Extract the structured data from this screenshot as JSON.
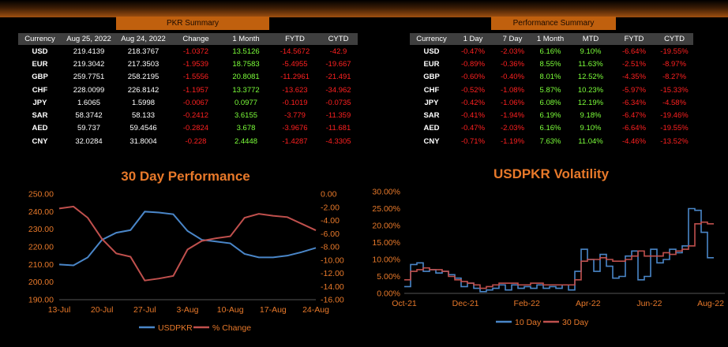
{
  "pkr_summary": {
    "title": "PKR Summary",
    "columns": [
      "Currency",
      "Aug 25, 2022",
      "Aug 24, 2022",
      "Change",
      "1 Month",
      "FYTD",
      "CYTD"
    ],
    "rows": [
      {
        "currency": "USD",
        "cells": [
          "219.4139",
          "218.3767",
          "-1.0372",
          "13.5126",
          "-14.5672",
          "-42.9"
        ]
      },
      {
        "currency": "EUR",
        "cells": [
          "219.3042",
          "217.3503",
          "-1.9539",
          "18.7583",
          "-5.4955",
          "-19.667"
        ]
      },
      {
        "currency": "GBP",
        "cells": [
          "259.7751",
          "258.2195",
          "-1.5556",
          "20.8081",
          "-11.2961",
          "-21.491"
        ]
      },
      {
        "currency": "CHF",
        "cells": [
          "228.0099",
          "226.8142",
          "-1.1957",
          "13.3772",
          "-13.623",
          "-34.962"
        ]
      },
      {
        "currency": "JPY",
        "cells": [
          "1.6065",
          "1.5998",
          "-0.0067",
          "0.0977",
          "-0.1019",
          "-0.0735"
        ]
      },
      {
        "currency": "SAR",
        "cells": [
          "58.3742",
          "58.133",
          "-0.2412",
          "3.6155",
          "-3.779",
          "-11.359"
        ]
      },
      {
        "currency": "AED",
        "cells": [
          "59.737",
          "59.4546",
          "-0.2824",
          "3.678",
          "-3.9676",
          "-11.681"
        ]
      },
      {
        "currency": "CNY",
        "cells": [
          "32.0284",
          "31.8004",
          "-0.228",
          "2.4448",
          "-1.4287",
          "-4.3305"
        ]
      }
    ]
  },
  "performance_summary": {
    "title": "Performance Summary",
    "columns": [
      "Currency",
      "1 Day",
      "7 Day",
      "1 Month",
      "MTD",
      "FYTD",
      "CYTD"
    ],
    "rows": [
      {
        "currency": "USD",
        "cells": [
          "-0.47%",
          "-2.03%",
          "6.16%",
          "9.10%",
          "-6.64%",
          "-19.55%"
        ]
      },
      {
        "currency": "EUR",
        "cells": [
          "-0.89%",
          "-0.36%",
          "8.55%",
          "11.63%",
          "-2.51%",
          "-8.97%"
        ]
      },
      {
        "currency": "GBP",
        "cells": [
          "-0.60%",
          "-0.40%",
          "8.01%",
          "12.52%",
          "-4.35%",
          "-8.27%"
        ]
      },
      {
        "currency": "CHF",
        "cells": [
          "-0.52%",
          "-1.08%",
          "5.87%",
          "10.23%",
          "-5.97%",
          "-15.33%"
        ]
      },
      {
        "currency": "JPY",
        "cells": [
          "-0.42%",
          "-1.06%",
          "6.08%",
          "12.19%",
          "-6.34%",
          "-4.58%"
        ]
      },
      {
        "currency": "SAR",
        "cells": [
          "-0.41%",
          "-1.94%",
          "6.19%",
          "9.18%",
          "-6.47%",
          "-19.46%"
        ]
      },
      {
        "currency": "AED",
        "cells": [
          "-0.47%",
          "-2.03%",
          "6.16%",
          "9.10%",
          "-6.64%",
          "-19.55%"
        ]
      },
      {
        "currency": "CNY",
        "cells": [
          "-0.71%",
          "-1.19%",
          "7.63%",
          "11.04%",
          "-4.46%",
          "-13.52%"
        ]
      }
    ]
  },
  "colors": {
    "accent": "#c0600e",
    "header_bg": "#3f3f3f",
    "negative": "#ff2020",
    "positive": "#7cff3a",
    "axis_text": "#e8792a",
    "usdpkr": "#4a86c8",
    "pct_change": "#c0504d"
  },
  "chart_data": [
    {
      "type": "line",
      "title": "30 Day Performance",
      "x": [
        "13-Jul",
        "15-Jul",
        "18-Jul",
        "20-Jul",
        "22-Jul",
        "25-Jul",
        "27-Jul",
        "29-Jul",
        "1-Aug",
        "3-Aug",
        "5-Aug",
        "8-Aug",
        "10-Aug",
        "12-Aug",
        "15-Aug",
        "17-Aug",
        "19-Aug",
        "22-Aug",
        "24-Aug"
      ],
      "x_ticks": [
        "13-Jul",
        "20-Jul",
        "27-Jul",
        "3-Aug",
        "10-Aug",
        "17-Aug",
        "24-Aug"
      ],
      "y_left": {
        "lim": [
          190,
          250
        ],
        "ticks": [
          "190.00",
          "200.00",
          "210.00",
          "220.00",
          "230.00",
          "240.00",
          "250.00"
        ]
      },
      "y_right": {
        "lim": [
          -16,
          0
        ],
        "ticks": [
          "-16.00",
          "-14.00",
          "-12.00",
          "-10.00",
          "-8.00",
          "-6.00",
          "-4.00",
          "-2.00",
          "0.00"
        ]
      },
      "series": [
        {
          "name": "USDPKR",
          "axis": "left",
          "values": [
            210,
            209.5,
            214,
            224,
            228,
            229.5,
            240,
            239.5,
            238.5,
            229,
            224,
            223,
            222,
            216,
            214,
            214,
            215,
            217,
            219.4
          ]
        },
        {
          "name": "% Change",
          "axis": "right",
          "values": [
            -2.2,
            -1.9,
            -3.6,
            -6.8,
            -9.0,
            -9.5,
            -13.1,
            -12.8,
            -12.4,
            -8.4,
            -7.1,
            -6.7,
            -6.4,
            -3.6,
            -3.0,
            -3.3,
            -3.5,
            -4.5,
            -5.5
          ]
        }
      ],
      "legend": "bottom"
    },
    {
      "type": "line",
      "title": "USDPKR Volatility",
      "x_ticks": [
        "Oct-21",
        "Dec-21",
        "Feb-22",
        "Apr-22",
        "Jun-22",
        "Aug-22"
      ],
      "y": {
        "lim": [
          0,
          30
        ],
        "ticks": [
          "0.00%",
          "5.00%",
          "10.00%",
          "15.00%",
          "20.00%",
          "25.00%",
          "30.00%"
        ]
      },
      "series": [
        {
          "name": "10 Day",
          "values": [
            2,
            8.5,
            9,
            6.5,
            7,
            6,
            6.5,
            5.5,
            4.5,
            2,
            3,
            1.5,
            0.5,
            1,
            1.5,
            2.5,
            1,
            2.5,
            1.5,
            2,
            1.5,
            2.5,
            1.5,
            2,
            1.5,
            2.5,
            1,
            6.5,
            13,
            10,
            6.5,
            11.5,
            8,
            4.5,
            5,
            11,
            12.5,
            4,
            5,
            13,
            9,
            10,
            13,
            12,
            14,
            25,
            24.5,
            18,
            10.5,
            10.5
          ]
        },
        {
          "name": "30 Day",
          "values": [
            4,
            6.5,
            7,
            7.5,
            7,
            7,
            6.5,
            5,
            4,
            3.5,
            3,
            2.5,
            1.5,
            2,
            2.5,
            3,
            3,
            3,
            2.5,
            2.5,
            3,
            3,
            2.5,
            2.5,
            2.5,
            2.5,
            2.5,
            4,
            9.5,
            10,
            10,
            10.5,
            10,
            9.5,
            9.5,
            10,
            11,
            12.5,
            11,
            11,
            11,
            12,
            11.5,
            12.5,
            13,
            14,
            20.5,
            21,
            20.5,
            20.5
          ]
        }
      ],
      "legend": "bottom"
    }
  ]
}
